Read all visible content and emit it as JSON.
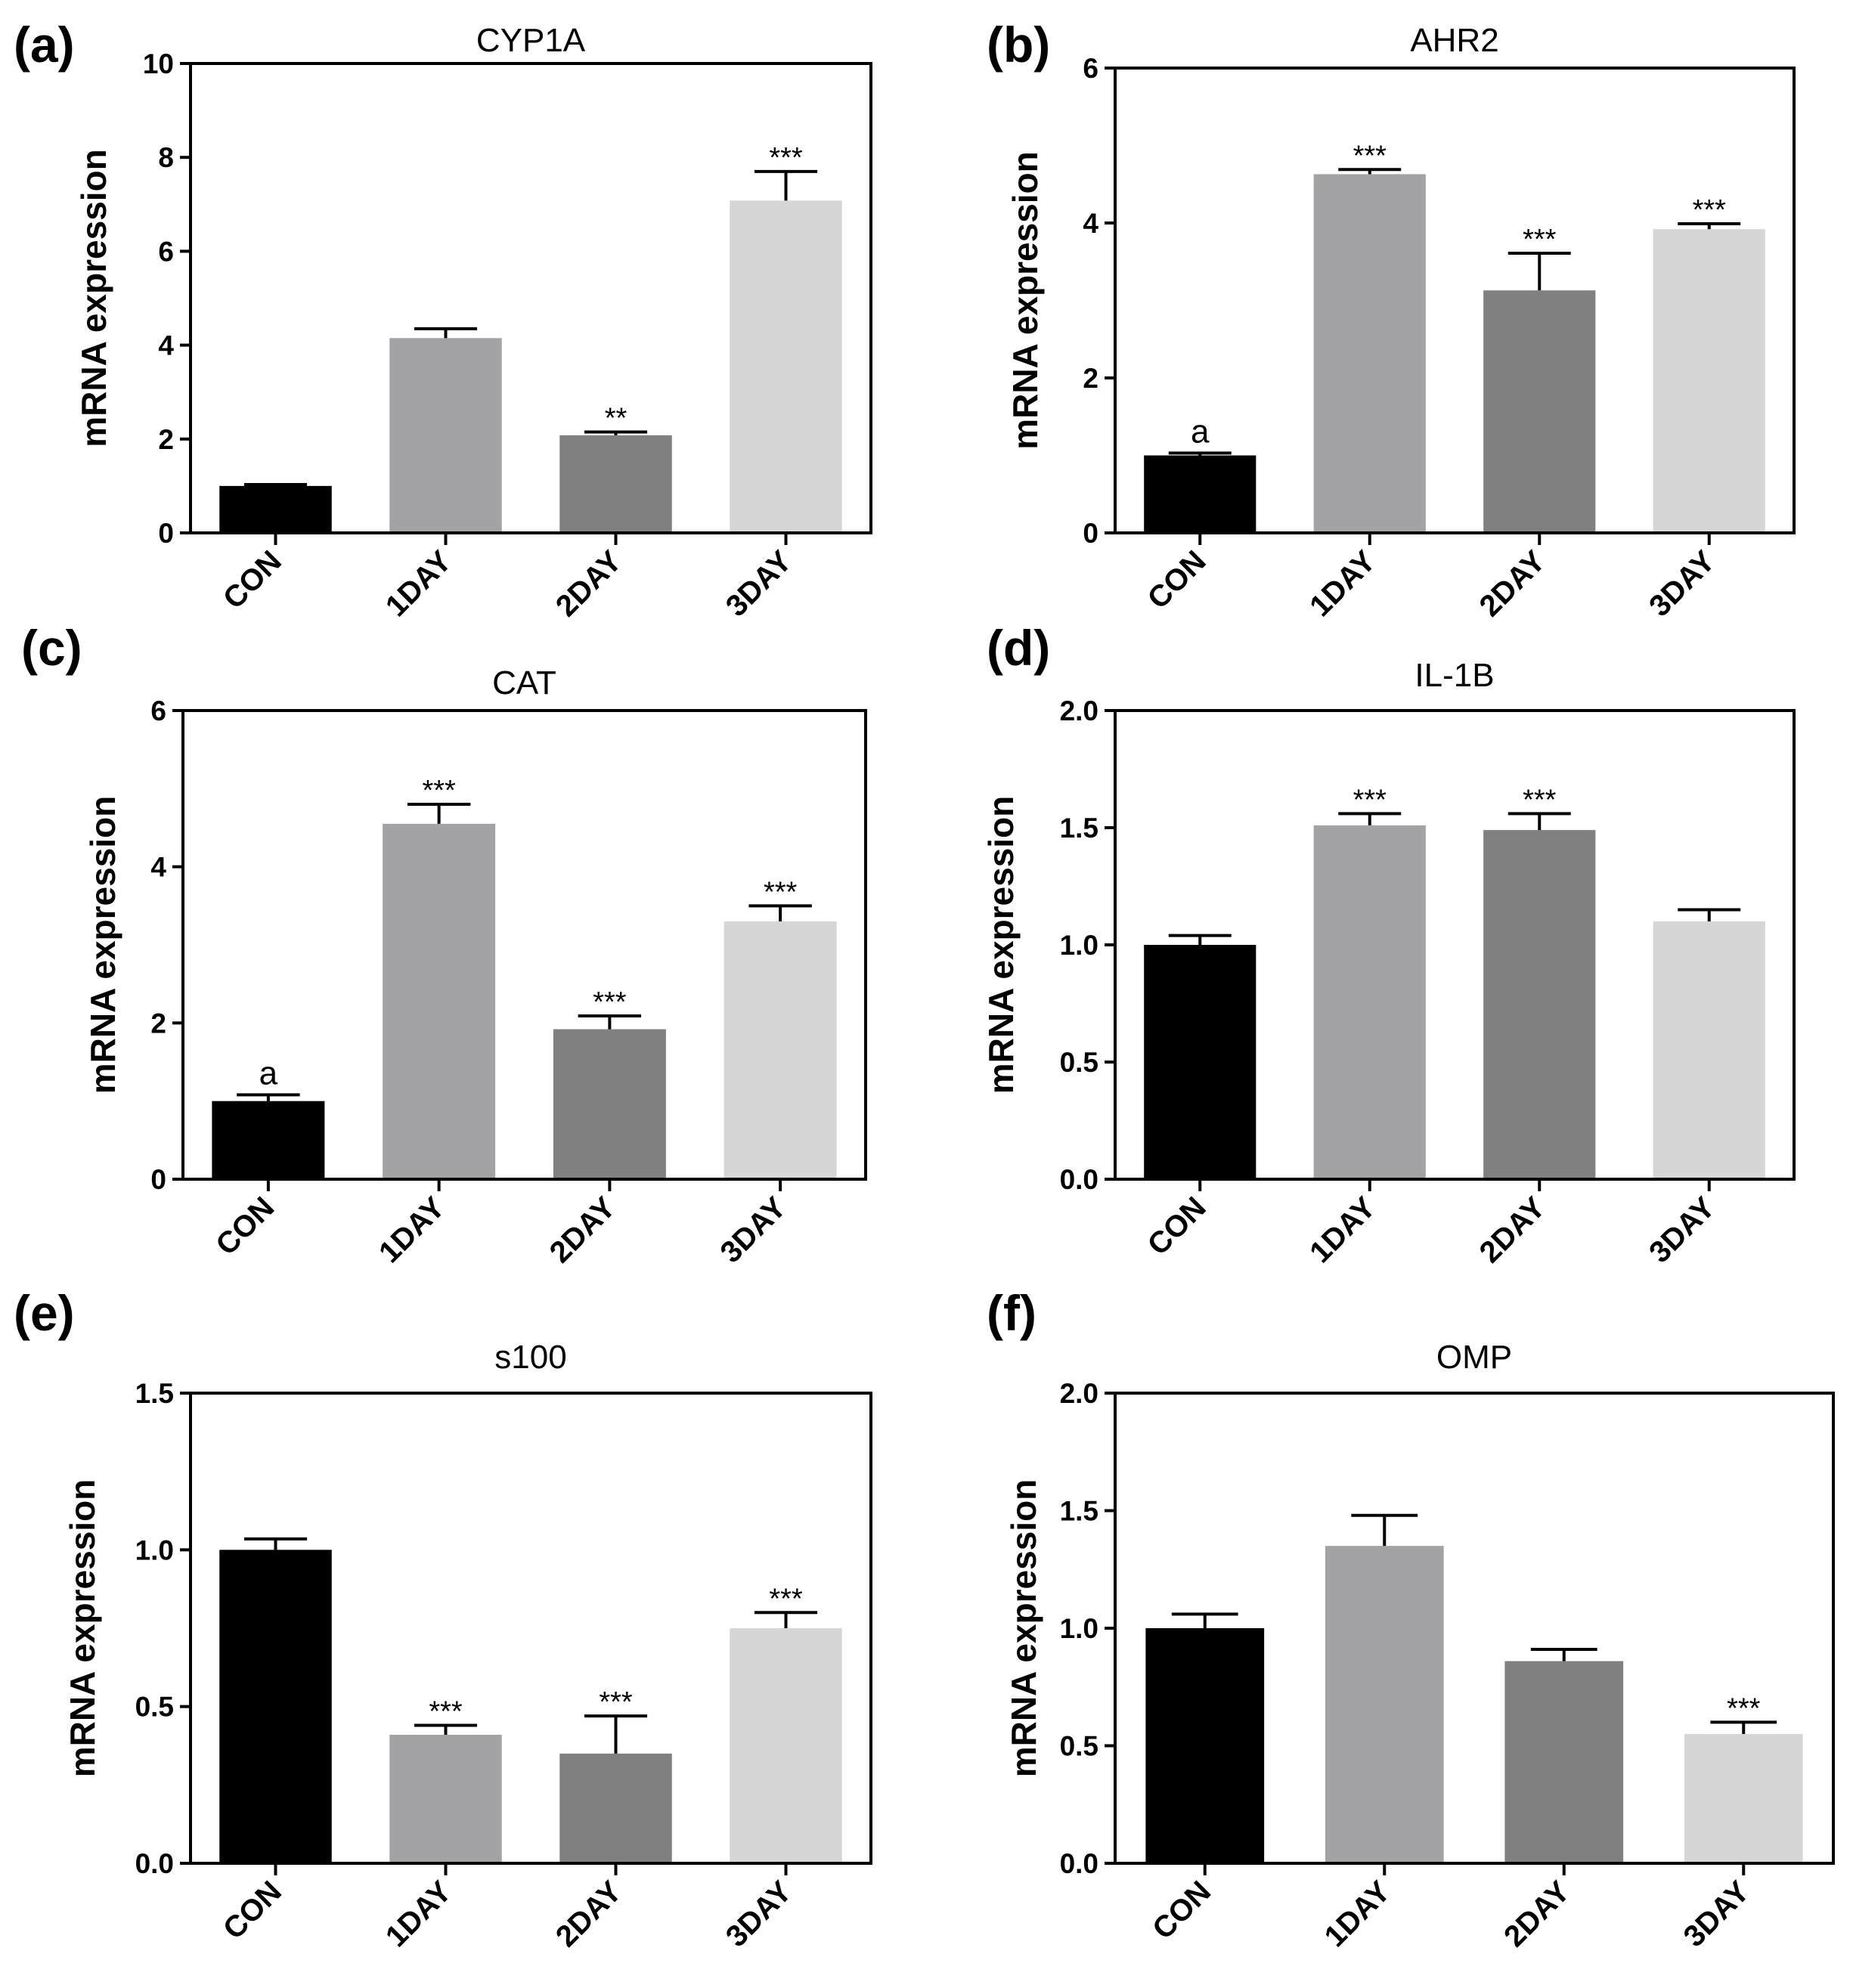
{
  "figure": {
    "description_free": true
  },
  "colors": {
    "CON": "#000000",
    "1DAY": "#a3a3a6",
    "2DAY": "#808080",
    "3DAY": "#d6d6d6",
    "axis": "#000000"
  },
  "chart_data": [
    {
      "panel": "(a)",
      "type": "bar",
      "title": "CYP1A",
      "ylabel": "mRNA expression",
      "xlabel": "",
      "categories": [
        "CON",
        "1DAY",
        "2DAY",
        "3DAY"
      ],
      "values": [
        1.0,
        4.15,
        2.08,
        7.08
      ],
      "errors": [
        0.03,
        0.2,
        0.07,
        0.62
      ],
      "annotations": [
        "",
        "",
        "**",
        "***"
      ],
      "ylim": [
        0,
        10
      ],
      "yticks": [
        "0",
        "2",
        "4",
        "6",
        "8",
        "10"
      ]
    },
    {
      "panel": "(b)",
      "type": "bar",
      "title": "AHR2",
      "ylabel": "mRNA expression",
      "xlabel": "",
      "categories": [
        "CON",
        "1DAY",
        "2DAY",
        "3DAY"
      ],
      "values": [
        1.0,
        4.63,
        3.13,
        3.92
      ],
      "errors": [
        0.03,
        0.06,
        0.48,
        0.07
      ],
      "annotations": [
        "a",
        "***",
        "***",
        "***"
      ],
      "ylim": [
        0,
        6
      ],
      "yticks": [
        "0",
        "2",
        "4",
        "6"
      ]
    },
    {
      "panel": "(c)",
      "type": "bar",
      "title": "CAT",
      "ylabel": "mRNA expression",
      "xlabel": "",
      "categories": [
        "CON",
        "1DAY",
        "2DAY",
        "3DAY"
      ],
      "values": [
        1.0,
        4.55,
        1.92,
        3.3
      ],
      "errors": [
        0.08,
        0.25,
        0.17,
        0.2
      ],
      "annotations": [
        "a",
        "***",
        "***",
        "***"
      ],
      "ylim": [
        0,
        6
      ],
      "yticks": [
        "0",
        "2",
        "4",
        "6"
      ]
    },
    {
      "panel": "(d)",
      "type": "bar",
      "title": "IL-1B",
      "ylabel": "mRNA expression",
      "xlabel": "",
      "categories": [
        "CON",
        "1DAY",
        "2DAY",
        "3DAY"
      ],
      "values": [
        1.0,
        1.51,
        1.49,
        1.1
      ],
      "errors": [
        0.04,
        0.05,
        0.07,
        0.05
      ],
      "annotations": [
        "",
        "***",
        "***",
        ""
      ],
      "ylim": [
        0,
        2
      ],
      "yticks": [
        "0.0",
        "0.5",
        "1.0",
        "1.5",
        "2.0"
      ]
    },
    {
      "panel": "(e)",
      "type": "bar",
      "title": "s100",
      "ylabel": "mRNA expression",
      "xlabel": "",
      "categories": [
        "CON",
        "1DAY",
        "2DAY",
        "3DAY"
      ],
      "values": [
        1.0,
        0.41,
        0.35,
        0.75
      ],
      "errors": [
        0.035,
        0.03,
        0.12,
        0.05
      ],
      "annotations": [
        "",
        "***",
        "***",
        "***"
      ],
      "ylim": [
        0,
        1.5
      ],
      "yticks": [
        "0.0",
        "0.5",
        "1.0",
        "1.5"
      ]
    },
    {
      "panel": "(f)",
      "type": "bar",
      "title": "OMP",
      "ylabel": "mRNA expression",
      "xlabel": "",
      "categories": [
        "CON",
        "1DAY",
        "2DAY",
        "3DAY"
      ],
      "values": [
        1.0,
        1.35,
        0.86,
        0.55
      ],
      "errors": [
        0.06,
        0.13,
        0.05,
        0.05
      ],
      "annotations": [
        "",
        "",
        "",
        "***"
      ],
      "ylim": [
        0,
        2
      ],
      "yticks": [
        "0.0",
        "0.5",
        "1.0",
        "1.5",
        "2.0"
      ]
    }
  ]
}
